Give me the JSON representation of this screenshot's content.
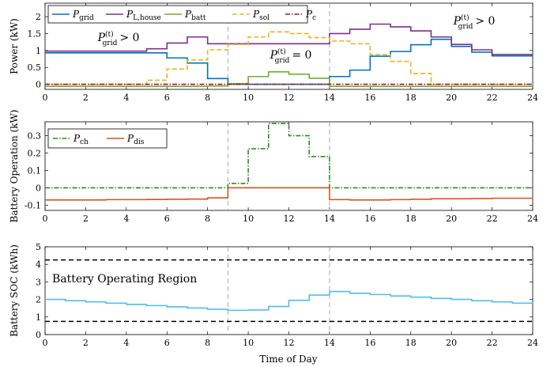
{
  "figure": {
    "xlabel_bottom": "Time of Day"
  },
  "chart_data": [
    {
      "type": "line",
      "id": "power",
      "ylabel": "Power (kW)",
      "xlim": [
        0,
        24
      ],
      "ylim": [
        -0.15,
        2.4
      ],
      "xticks": [
        0,
        2,
        4,
        6,
        8,
        10,
        12,
        14,
        16,
        18,
        20,
        22,
        24
      ],
      "yticks": [
        0,
        0.5,
        1,
        1.5,
        2
      ],
      "ytick_labels": [
        "0",
        "0.5",
        "1",
        "1.5",
        "2"
      ],
      "vlines": [
        9,
        14
      ],
      "legend": {
        "placement": "top-left",
        "entries": [
          {
            "base": "P",
            "sub": "grid",
            "color": "#0072BD",
            "dash": "solid"
          },
          {
            "base": "P",
            "sub": "L,house",
            "color": "#7E2F8E",
            "dash": "solid"
          },
          {
            "base": "P",
            "sub": "batt",
            "color": "#77AC30",
            "dash": "solid"
          },
          {
            "base": "P",
            "sub": "sol",
            "color": "#EDB120",
            "dash": "dashed"
          },
          {
            "base": "P",
            "sub": "c",
            "color": "#A2142F",
            "dash": "dashdot"
          }
        ]
      },
      "annotations": [
        {
          "base": "P",
          "sup": "(t)",
          "sub": "grid",
          "relation": "> 0",
          "at": [
            3,
            1.2
          ]
        },
        {
          "base": "P",
          "sup": "(t)",
          "sub": "grid",
          "relation": "= 0",
          "at": [
            11.9,
            0.55
          ]
        },
        {
          "base": "P",
          "sup": "(t)",
          "sub": "grid",
          "relation": "> 0",
          "at": [
            22.1,
            1.9
          ]
        }
      ],
      "series": [
        {
          "name": "P_grid",
          "color": "#0072BD",
          "dash": "solid",
          "x": [
            0,
            1,
            2,
            3,
            4,
            5,
            6,
            7,
            8,
            9,
            10,
            11,
            12,
            13,
            14,
            15,
            16,
            17,
            18,
            19,
            20,
            21,
            22,
            23,
            24
          ],
          "y": [
            0.93,
            0.93,
            0.93,
            0.93,
            0.93,
            0.93,
            0.78,
            0.63,
            0.17,
            0,
            0,
            0,
            0,
            0,
            0.23,
            0.42,
            0.83,
            0.97,
            1.17,
            1.33,
            1.12,
            0.95,
            0.84,
            0.84,
            0.84
          ]
        },
        {
          "name": "P_L,house",
          "color": "#7E2F8E",
          "dash": "solid",
          "x": [
            0,
            1,
            2,
            3,
            4,
            5,
            6,
            7,
            8,
            9,
            10,
            11,
            12,
            13,
            14,
            15,
            16,
            17,
            18,
            19,
            20,
            21,
            22,
            23,
            24
          ],
          "y": [
            0.98,
            0.98,
            0.98,
            0.98,
            0.98,
            1.05,
            1.22,
            1.4,
            1.2,
            1.2,
            1.2,
            1.2,
            1.2,
            1.2,
            1.5,
            1.63,
            1.78,
            1.7,
            1.58,
            1.4,
            1.18,
            1.02,
            0.88,
            0.88,
            0.88
          ]
        },
        {
          "name": "P_batt",
          "color": "#77AC30",
          "dash": "solid",
          "x": [
            0,
            1,
            2,
            3,
            4,
            5,
            6,
            7,
            8,
            9,
            10,
            11,
            12,
            13,
            14,
            15,
            16,
            17,
            18,
            19,
            20,
            21,
            22,
            23,
            24
          ],
          "y": [
            -0.06,
            -0.06,
            -0.06,
            -0.06,
            -0.06,
            -0.06,
            -0.06,
            -0.06,
            -0.05,
            0.02,
            0.23,
            0.37,
            0.3,
            0.18,
            -0.06,
            -0.06,
            -0.06,
            -0.06,
            -0.06,
            -0.06,
            -0.06,
            -0.06,
            -0.06,
            -0.06,
            -0.06
          ]
        },
        {
          "name": "P_sol",
          "color": "#EDB120",
          "dash": "dashed",
          "x": [
            0,
            1,
            2,
            3,
            4,
            5,
            6,
            7,
            8,
            9,
            10,
            11,
            12,
            13,
            14,
            15,
            16,
            17,
            18,
            19,
            20,
            21,
            22,
            23,
            24
          ],
          "y": [
            0,
            0,
            0,
            0,
            0,
            0.12,
            0.45,
            0.72,
            1.02,
            1.18,
            1.4,
            1.55,
            1.5,
            1.38,
            1.28,
            1.2,
            0.88,
            0.68,
            0.32,
            0,
            0,
            0,
            0,
            0,
            0
          ]
        },
        {
          "name": "P_c",
          "color": "#A2142F",
          "dash": "dashdot",
          "x": [
            0,
            24
          ],
          "y": [
            0,
            0
          ]
        }
      ]
    },
    {
      "type": "line",
      "id": "battery-operation",
      "ylabel": "Battery Operation (kW)",
      "xlim": [
        0,
        24
      ],
      "ylim": [
        -0.13,
        0.38
      ],
      "xticks": [
        0,
        2,
        4,
        6,
        8,
        10,
        12,
        14,
        16,
        18,
        20,
        22,
        24
      ],
      "yticks": [
        -0.1,
        0,
        0.1,
        0.2,
        0.3
      ],
      "ytick_labels": [
        "-0.1",
        "0",
        "0.1",
        "0.2",
        "0.3"
      ],
      "vlines": [
        9,
        14
      ],
      "legend": {
        "placement": "top-left",
        "entries": [
          {
            "base": "P",
            "sub": "ch",
            "color": "#2E8B22",
            "dash": "dashdot"
          },
          {
            "base": "P",
            "sub": "dis",
            "color": "#D95319",
            "dash": "solid"
          }
        ]
      },
      "series": [
        {
          "name": "P_ch",
          "color": "#2E8B22",
          "dash": "dashdot",
          "x": [
            0,
            1,
            2,
            3,
            4,
            5,
            6,
            7,
            8,
            9,
            10,
            11,
            12,
            13,
            14,
            15,
            16,
            17,
            18,
            19,
            20,
            21,
            22,
            23,
            24
          ],
          "y": [
            0,
            0,
            0,
            0,
            0,
            0,
            0,
            0,
            0,
            0.025,
            0.225,
            0.37,
            0.3,
            0.18,
            0,
            0,
            0,
            0,
            0,
            0,
            0,
            0,
            0,
            0,
            0
          ]
        },
        {
          "name": "P_dis",
          "color": "#D95319",
          "dash": "solid",
          "x": [
            0,
            1,
            2,
            3,
            4,
            5,
            6,
            7,
            8,
            9,
            10,
            11,
            12,
            13,
            14,
            15,
            16,
            17,
            18,
            19,
            20,
            21,
            22,
            23,
            24
          ],
          "y": [
            -0.07,
            -0.07,
            -0.07,
            -0.068,
            -0.068,
            -0.067,
            -0.066,
            -0.065,
            -0.058,
            0,
            0,
            0,
            0,
            0,
            -0.068,
            -0.07,
            -0.07,
            -0.068,
            -0.066,
            -0.063,
            -0.063,
            -0.062,
            -0.06,
            -0.06,
            -0.06
          ]
        }
      ]
    },
    {
      "type": "line",
      "id": "battery-soc",
      "ylabel": "Battery SOC (kWh)",
      "xlim": [
        0,
        24
      ],
      "ylim": [
        0,
        5
      ],
      "xticks": [
        0,
        2,
        4,
        6,
        8,
        10,
        12,
        14,
        16,
        18,
        20,
        22,
        24
      ],
      "yticks": [
        0,
        1,
        2,
        3,
        4,
        5
      ],
      "ytick_labels": [
        "0",
        "1",
        "2",
        "3",
        "4",
        "5"
      ],
      "vlines": [
        9,
        14
      ],
      "hlines": [
        4.25,
        0.75
      ],
      "region_label": "Battery Operating Region",
      "series": [
        {
          "name": "SOC",
          "color": "#4DBEEE",
          "dash": "solid",
          "x": [
            0,
            1,
            2,
            3,
            4,
            5,
            6,
            7,
            8,
            9,
            10,
            11,
            12,
            13,
            14,
            15,
            16,
            17,
            18,
            19,
            20,
            21,
            22,
            23,
            24
          ],
          "y": [
            2.0,
            1.93,
            1.86,
            1.79,
            1.72,
            1.65,
            1.58,
            1.51,
            1.44,
            1.38,
            1.4,
            1.6,
            1.95,
            2.25,
            2.45,
            2.35,
            2.28,
            2.2,
            2.13,
            2.06,
            2.0,
            1.93,
            1.86,
            1.79,
            1.75
          ]
        }
      ]
    }
  ]
}
